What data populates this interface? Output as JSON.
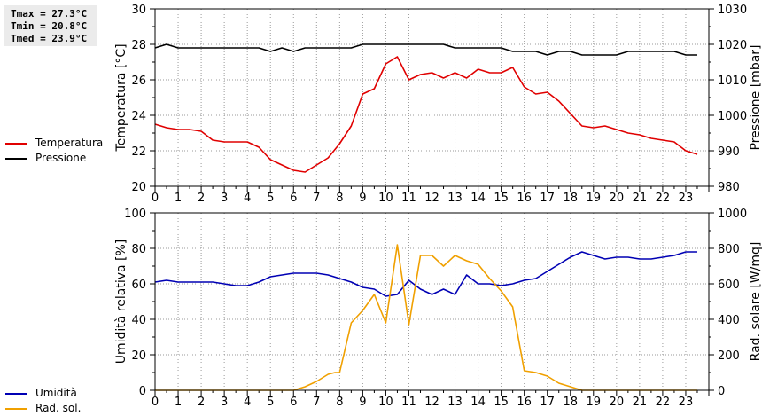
{
  "stats": {
    "tmax": "Tmax = 27.3°C",
    "tmin": "Tmin = 20.8°C",
    "tmed": "Tmed = 23.9°C"
  },
  "legend_top": [
    {
      "label": "Temperatura",
      "color": "#e00000"
    },
    {
      "label": "Pressione",
      "color": "#000000"
    }
  ],
  "legend_bottom": [
    {
      "label": "Umidità",
      "color": "#0000b4"
    },
    {
      "label": "Rad. sol.",
      "color": "#f0a000"
    }
  ],
  "chart_data": [
    {
      "type": "line",
      "xlim": [
        0,
        24
      ],
      "xticks": [
        "0",
        "1",
        "2",
        "3",
        "4",
        "5",
        "6",
        "7",
        "8",
        "9",
        "10",
        "11",
        "12",
        "13",
        "14",
        "15",
        "16",
        "17",
        "18",
        "19",
        "20",
        "21",
        "22",
        "23"
      ],
      "ylabel": "Temperatura [°C]",
      "ylim": [
        20,
        30
      ],
      "yticks": [
        "20",
        "22",
        "24",
        "26",
        "28",
        "30"
      ],
      "y2label": "Pressione [mbar]",
      "y2lim": [
        980,
        1030
      ],
      "y2ticks": [
        "980",
        "990",
        "1000",
        "1010",
        "1020",
        "1030"
      ],
      "grid": true,
      "series": [
        {
          "name": "Temperatura",
          "axis": "left",
          "color": "#e00000",
          "x": [
            0,
            0.5,
            1,
            1.5,
            2,
            2.5,
            3,
            3.5,
            4,
            4.5,
            5,
            5.5,
            6,
            6.5,
            7,
            7.5,
            8,
            8.5,
            9,
            9.5,
            10,
            10.5,
            11,
            11.5,
            12,
            12.5,
            13,
            13.5,
            14,
            14.5,
            15,
            15.5,
            16,
            16.5,
            17,
            17.5,
            18,
            18.5,
            19,
            19.5,
            20,
            20.5,
            21,
            21.5,
            22,
            22.5,
            23,
            23.5
          ],
          "y": [
            23.5,
            23.3,
            23.2,
            23.2,
            23.1,
            22.6,
            22.5,
            22.5,
            22.5,
            22.2,
            21.5,
            21.2,
            20.9,
            20.8,
            21.2,
            21.6,
            22.4,
            23.4,
            25.2,
            25.5,
            26.9,
            27.3,
            26.0,
            26.3,
            26.4,
            26.1,
            26.4,
            26.1,
            26.6,
            26.4,
            26.4,
            26.7,
            25.6,
            25.2,
            25.3,
            24.8,
            24.1,
            23.4,
            23.3,
            23.4,
            23.2,
            23.0,
            22.9,
            22.7,
            22.6,
            22.5,
            22.0,
            21.8
          ]
        },
        {
          "name": "Pressione",
          "axis": "right",
          "color": "#000000",
          "x": [
            0,
            0.5,
            1,
            1.5,
            2,
            2.5,
            3,
            3.5,
            4,
            4.5,
            5,
            5.5,
            6,
            6.5,
            7,
            7.5,
            8,
            8.5,
            9,
            9.5,
            10,
            10.5,
            11,
            11.5,
            12,
            12.5,
            13,
            13.5,
            14,
            14.5,
            15,
            15.5,
            16,
            16.5,
            17,
            17.5,
            18,
            18.5,
            19,
            19.5,
            20,
            20.5,
            21,
            21.5,
            22,
            22.5,
            23,
            23.5
          ],
          "y": [
            1019,
            1020,
            1019,
            1019,
            1019,
            1019,
            1019,
            1019,
            1019,
            1019,
            1018,
            1019,
            1018,
            1019,
            1019,
            1019,
            1019,
            1019,
            1020,
            1020,
            1020,
            1020,
            1020,
            1020,
            1020,
            1020,
            1019,
            1019,
            1019,
            1019,
            1019,
            1018,
            1018,
            1018,
            1017,
            1018,
            1018,
            1017,
            1017,
            1017,
            1017,
            1018,
            1018,
            1018,
            1018,
            1018,
            1017,
            1017
          ]
        }
      ]
    },
    {
      "type": "line",
      "xlim": [
        0,
        24
      ],
      "xticks": [
        "0",
        "1",
        "2",
        "3",
        "4",
        "5",
        "6",
        "7",
        "8",
        "9",
        "10",
        "11",
        "12",
        "13",
        "14",
        "15",
        "16",
        "17",
        "18",
        "19",
        "20",
        "21",
        "22",
        "23"
      ],
      "ylabel": "Umidità relativa [%]",
      "ylim": [
        0,
        100
      ],
      "yticks": [
        "0",
        "20",
        "40",
        "60",
        "80",
        "100"
      ],
      "y2label": "Rad. solare [W/mq]",
      "y2lim": [
        0,
        1000
      ],
      "y2ticks": [
        "0",
        "200",
        "400",
        "600",
        "800",
        "1000"
      ],
      "grid": true,
      "series": [
        {
          "name": "Umidità",
          "axis": "left",
          "color": "#0000b4",
          "x": [
            0,
            0.5,
            1,
            1.5,
            2,
            2.5,
            3,
            3.5,
            4,
            4.5,
            5,
            5.5,
            6,
            6.5,
            7,
            7.5,
            8,
            8.5,
            9,
            9.5,
            10,
            10.5,
            11,
            11.5,
            12,
            12.5,
            13,
            13.5,
            14,
            14.5,
            15,
            15.5,
            16,
            16.5,
            17,
            17.5,
            18,
            18.5,
            19,
            19.5,
            20,
            20.5,
            21,
            21.5,
            22,
            22.5,
            23,
            23.5
          ],
          "y": [
            61,
            62,
            61,
            61,
            61,
            61,
            60,
            59,
            59,
            61,
            64,
            65,
            66,
            66,
            66,
            65,
            63,
            61,
            58,
            57,
            53,
            54,
            62,
            57,
            54,
            57,
            54,
            65,
            60,
            60,
            59,
            60,
            62,
            63,
            67,
            71,
            75,
            78,
            76,
            74,
            75,
            75,
            74,
            74,
            75,
            76,
            78,
            78
          ]
        },
        {
          "name": "Rad. sol.",
          "axis": "right",
          "color": "#f0a000",
          "x": [
            0,
            0.5,
            1,
            1.5,
            2,
            2.5,
            3,
            3.5,
            4,
            4.5,
            5,
            5.5,
            6,
            6.5,
            7,
            7.5,
            7.8,
            8,
            8.5,
            9,
            9.5,
            10,
            10.5,
            11,
            11.5,
            12,
            12.5,
            13,
            13.5,
            14,
            14.5,
            15,
            15.5,
            16,
            16.5,
            17,
            17.5,
            18,
            18.5,
            19,
            19.5,
            20,
            20.5,
            21,
            21.5,
            22,
            22.5,
            23,
            23.5
          ],
          "y": [
            0,
            0,
            0,
            0,
            0,
            0,
            0,
            0,
            0,
            0,
            0,
            0,
            0,
            20,
            50,
            90,
            100,
            100,
            380,
            450,
            540,
            380,
            820,
            370,
            760,
            760,
            700,
            760,
            730,
            710,
            630,
            560,
            470,
            110,
            100,
            80,
            40,
            20,
            0,
            0,
            0,
            0,
            0,
            0,
            0,
            0,
            0,
            0,
            0
          ]
        }
      ]
    }
  ]
}
